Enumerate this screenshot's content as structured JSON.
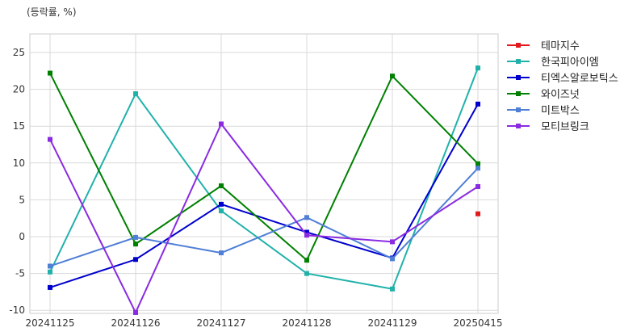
{
  "chart_data": {
    "type": "line",
    "unit_label": "(등락률, %)",
    "x": [
      "20241125",
      "20241126",
      "20241127",
      "20241128",
      "20241129",
      "20250415"
    ],
    "ylim": [
      -10,
      27
    ],
    "yticks": [
      25,
      20,
      15,
      10,
      5,
      0,
      -5,
      -10
    ],
    "grid": true,
    "legend_position": "right",
    "series": [
      {
        "name": "테마지수",
        "color": "#e31a1c",
        "values": [
          null,
          null,
          null,
          null,
          null,
          3.1
        ]
      },
      {
        "name": "한국피아이엠",
        "color": "#20b2aa",
        "values": [
          -4.8,
          19.4,
          3.5,
          -5.0,
          -7.1,
          22.9
        ]
      },
      {
        "name": "티엑스알로보틱스",
        "color": "#0000cd",
        "values": [
          -6.9,
          -3.1,
          4.4,
          0.6,
          -2.9,
          18.0
        ]
      },
      {
        "name": "와이즈넛",
        "color": "#008000",
        "values": [
          22.2,
          -1.0,
          6.9,
          -3.2,
          21.8,
          9.9
        ]
      },
      {
        "name": "미트박스",
        "color": "#4f7fd6",
        "values": [
          -4.0,
          -0.1,
          -2.2,
          2.6,
          -3.0,
          9.3
        ]
      },
      {
        "name": "모티브링크",
        "color": "#8a2be2",
        "values": [
          13.2,
          -10.3,
          15.3,
          0.2,
          -0.7,
          6.8
        ]
      }
    ]
  }
}
